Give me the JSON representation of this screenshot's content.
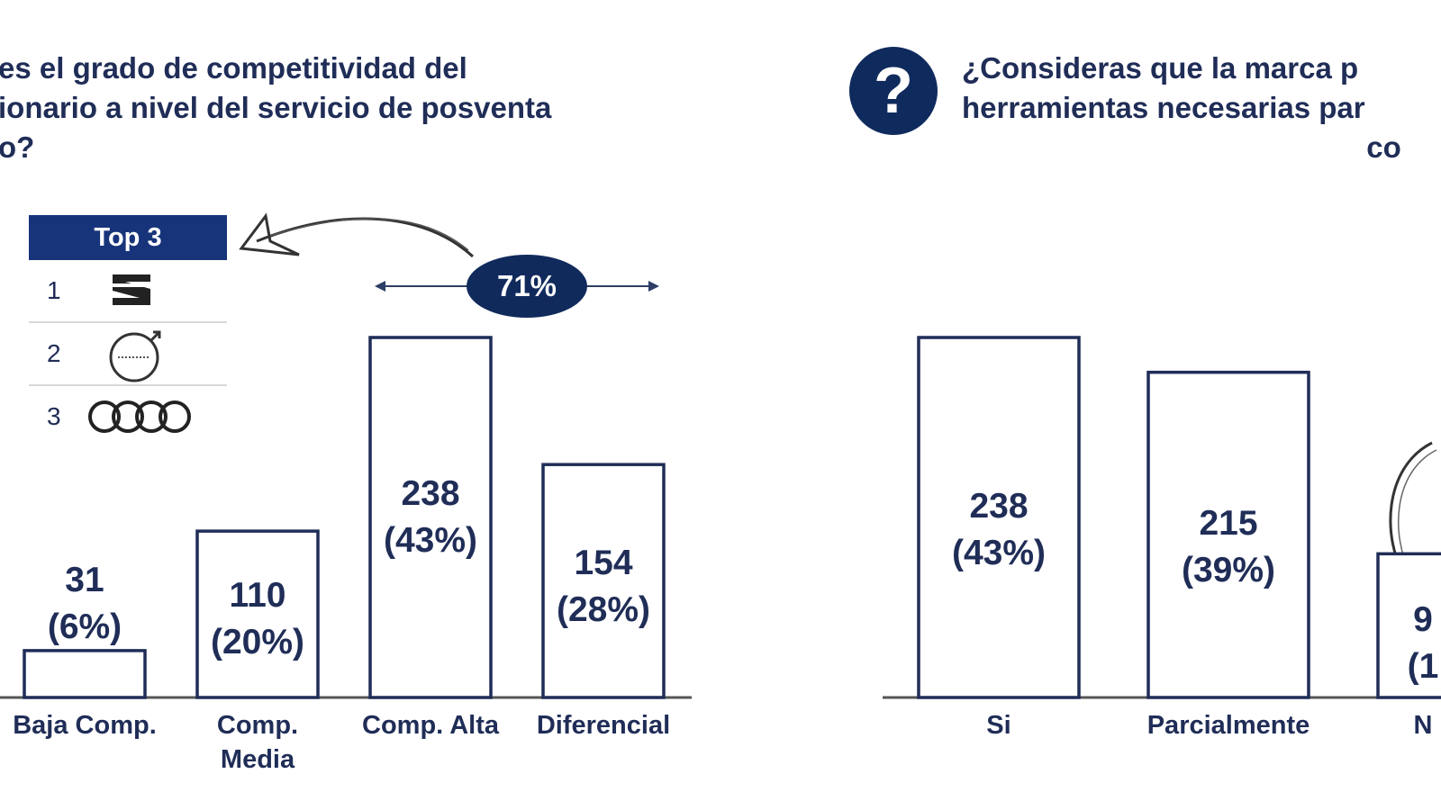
{
  "questions": {
    "left": "es el grado de competitividad del\nionario a nivel del servicio de posventa\no?",
    "right": "¿Consideras que la marca p\nherramientas necesarias par\n                                                 co"
  },
  "help_icon": "?",
  "top3": {
    "title": "Top 3",
    "items": [
      {
        "rank": "1",
        "logo": "seat-logo-icon"
      },
      {
        "rank": "2",
        "logo": "volvo-logo-icon"
      },
      {
        "rank": "3",
        "logo": "audi-logo-icon"
      }
    ]
  },
  "highlight": {
    "label": "71%"
  },
  "chart_data": [
    {
      "type": "bar",
      "categories": [
        "Baja Comp.",
        "Comp.\nMedia",
        "Comp. Alta",
        "Diferencial"
      ],
      "values": [
        31,
        110,
        238,
        154
      ],
      "labels": [
        "31\n(6%)",
        "110\n(20%)",
        "238\n(43%)",
        "154\n(28%)"
      ],
      "ylim": [
        0,
        238
      ]
    },
    {
      "type": "bar",
      "categories": [
        "Si",
        "Parcialmente",
        "N"
      ],
      "values": [
        238,
        215,
        95
      ],
      "labels": [
        "238\n(43%)",
        "215\n(39%)",
        "9\n(1"
      ],
      "ylim": [
        0,
        238
      ]
    }
  ],
  "colors": {
    "navy": "#1f2d57",
    "dark": "#102a5c",
    "bar_fill": "#ffffff"
  }
}
